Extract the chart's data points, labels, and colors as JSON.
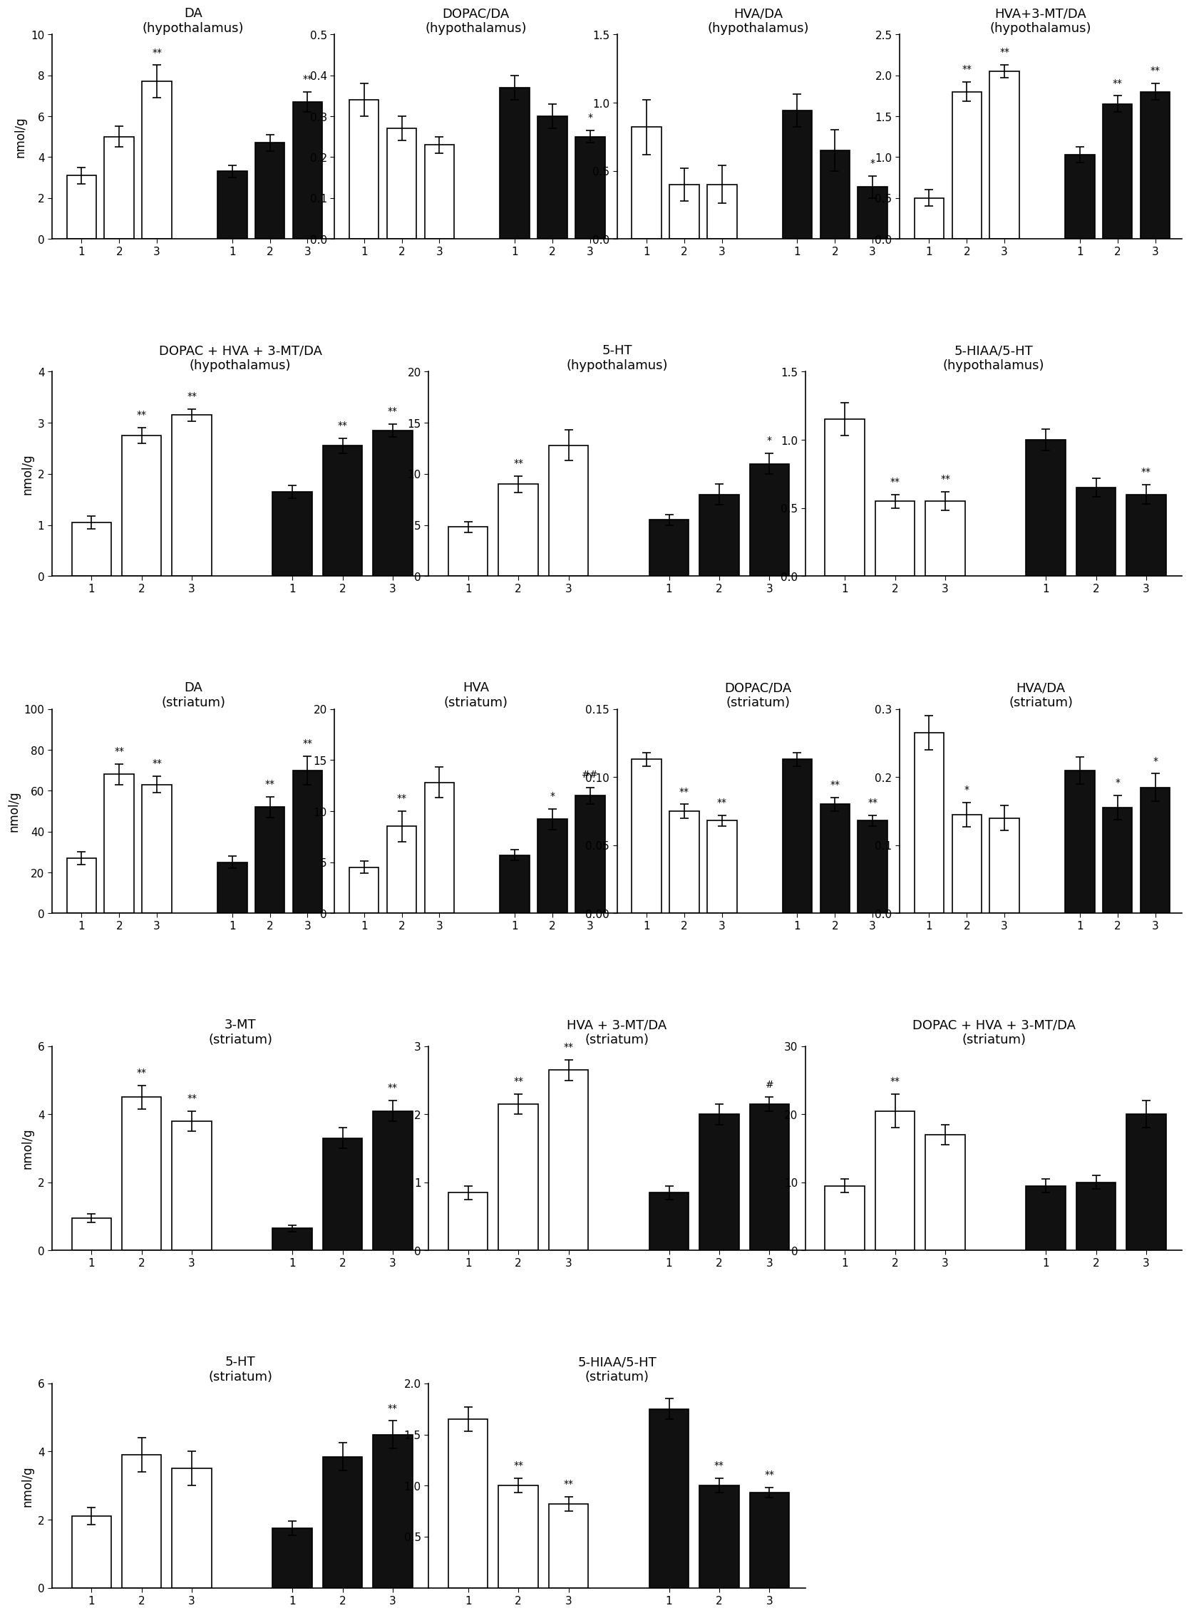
{
  "panels": [
    {
      "title": "DA",
      "subtitle": "(hypothalamus)",
      "ylabel": "nmol/g",
      "ylim": [
        0,
        10
      ],
      "yticks": [
        0,
        2,
        4,
        6,
        8,
        10
      ],
      "white_bars": [
        3.1,
        5.0,
        7.7
      ],
      "black_bars": [
        3.3,
        4.7,
        6.7
      ],
      "white_errors": [
        0.4,
        0.5,
        0.8
      ],
      "black_errors": [
        0.3,
        0.4,
        0.5
      ],
      "white_sig": [
        "",
        "",
        "**"
      ],
      "black_sig": [
        "",
        "",
        "**"
      ],
      "row": 0,
      "col": 0
    },
    {
      "title": "DOPAC/DA",
      "subtitle": "(hypothalamus)",
      "ylabel": "",
      "ylim": [
        0,
        0.5
      ],
      "yticks": [
        0,
        0.1,
        0.2,
        0.3,
        0.4,
        0.5
      ],
      "white_bars": [
        0.34,
        0.27,
        0.23
      ],
      "black_bars": [
        0.37,
        0.3,
        0.25
      ],
      "white_errors": [
        0.04,
        0.03,
        0.02
      ],
      "black_errors": [
        0.03,
        0.03,
        0.015
      ],
      "white_sig": [
        "",
        "",
        ""
      ],
      "black_sig": [
        "",
        "",
        "*"
      ],
      "row": 0,
      "col": 1
    },
    {
      "title": "HVA/DA",
      "subtitle": "(hypothalamus)",
      "ylabel": "",
      "ylim": [
        0,
        1.5
      ],
      "yticks": [
        0,
        0.5,
        1.0,
        1.5
      ],
      "white_bars": [
        0.82,
        0.4,
        0.4
      ],
      "black_bars": [
        0.94,
        0.65,
        0.38
      ],
      "white_errors": [
        0.2,
        0.12,
        0.14
      ],
      "black_errors": [
        0.12,
        0.15,
        0.08
      ],
      "white_sig": [
        "",
        "",
        ""
      ],
      "black_sig": [
        "",
        "",
        "*"
      ],
      "row": 0,
      "col": 2
    },
    {
      "title": "HVA+3-MT/DA",
      "subtitle": "(hypothalamus)",
      "ylabel": "",
      "ylim": [
        0,
        2.5
      ],
      "yticks": [
        0,
        0.5,
        1.0,
        1.5,
        2.0,
        2.5
      ],
      "white_bars": [
        0.5,
        1.8,
        2.05
      ],
      "black_bars": [
        1.03,
        1.65,
        1.8
      ],
      "white_errors": [
        0.1,
        0.12,
        0.08
      ],
      "black_errors": [
        0.1,
        0.1,
        0.1
      ],
      "white_sig": [
        "",
        "**",
        "**"
      ],
      "black_sig": [
        "",
        "**",
        "**"
      ],
      "row": 0,
      "col": 3
    },
    {
      "title": "DOPAC + HVA + 3-MT/DA",
      "subtitle": "(hypothalamus)",
      "ylabel": "nmol/g",
      "ylim": [
        0,
        4
      ],
      "yticks": [
        0,
        1,
        2,
        3,
        4
      ],
      "white_bars": [
        1.05,
        2.75,
        3.15
      ],
      "black_bars": [
        1.65,
        2.55,
        2.85
      ],
      "white_errors": [
        0.12,
        0.15,
        0.12
      ],
      "black_errors": [
        0.12,
        0.15,
        0.12
      ],
      "white_sig": [
        "",
        "**",
        "**"
      ],
      "black_sig": [
        "",
        "**",
        "**"
      ],
      "row": 1,
      "col": 0
    },
    {
      "title": "5-HT",
      "subtitle": "(hypothalamus)",
      "ylabel": "",
      "ylim": [
        0,
        20
      ],
      "yticks": [
        0,
        5,
        10,
        15,
        20
      ],
      "white_bars": [
        4.8,
        9.0,
        12.8
      ],
      "black_bars": [
        5.5,
        8.0,
        11.0
      ],
      "white_errors": [
        0.5,
        0.8,
        1.5
      ],
      "black_errors": [
        0.5,
        1.0,
        1.0
      ],
      "white_sig": [
        "",
        "**",
        ""
      ],
      "black_sig": [
        "",
        "",
        "*"
      ],
      "row": 1,
      "col": 1
    },
    {
      "title": "5-HIAA/5-HT",
      "subtitle": "(hypothalamus)",
      "ylabel": "",
      "ylim": [
        0,
        1.5
      ],
      "yticks": [
        0,
        0.5,
        1.0,
        1.5
      ],
      "white_bars": [
        1.15,
        0.55,
        0.55
      ],
      "black_bars": [
        1.0,
        0.65,
        0.6
      ],
      "white_errors": [
        0.12,
        0.05,
        0.07
      ],
      "black_errors": [
        0.08,
        0.07,
        0.07
      ],
      "white_sig": [
        "",
        "**",
        "**"
      ],
      "black_sig": [
        "",
        "",
        "**"
      ],
      "row": 1,
      "col": 2
    },
    {
      "title": "DA",
      "subtitle": "(striatum)",
      "ylabel": "nmol/g",
      "ylim": [
        0,
        100
      ],
      "yticks": [
        0,
        20,
        40,
        60,
        80,
        100
      ],
      "white_bars": [
        27,
        68,
        63
      ],
      "black_bars": [
        25,
        52,
        70
      ],
      "white_errors": [
        3,
        5,
        4
      ],
      "black_errors": [
        3,
        5,
        7
      ],
      "white_sig": [
        "",
        "**",
        "**"
      ],
      "black_sig": [
        "",
        "**",
        "**"
      ],
      "row": 2,
      "col": 0
    },
    {
      "title": "HVA",
      "subtitle": "(striatum)",
      "ylabel": "",
      "ylim": [
        0,
        20
      ],
      "yticks": [
        0,
        5,
        10,
        15,
        20
      ],
      "white_bars": [
        4.5,
        8.5,
        12.8
      ],
      "black_bars": [
        5.7,
        9.2,
        11.5
      ],
      "white_errors": [
        0.6,
        1.5,
        1.5
      ],
      "black_errors": [
        0.5,
        1.0,
        0.8
      ],
      "white_sig": [
        "",
        "**",
        ""
      ],
      "black_sig": [
        "",
        "*",
        "##"
      ],
      "row": 2,
      "col": 1
    },
    {
      "title": "DOPAC/DA",
      "subtitle": "(striatum)",
      "ylabel": "",
      "ylim": [
        0,
        0.15
      ],
      "yticks": [
        0,
        0.05,
        0.1,
        0.15
      ],
      "white_bars": [
        0.113,
        0.075,
        0.068
      ],
      "black_bars": [
        0.113,
        0.08,
        0.068
      ],
      "white_errors": [
        0.005,
        0.005,
        0.004
      ],
      "black_errors": [
        0.005,
        0.005,
        0.004
      ],
      "white_sig": [
        "",
        "**",
        "**"
      ],
      "black_sig": [
        "",
        "**",
        "**"
      ],
      "row": 2,
      "col": 2
    },
    {
      "title": "HVA/DA",
      "subtitle": "(striatum)",
      "ylabel": "",
      "ylim": [
        0,
        0.3
      ],
      "yticks": [
        0,
        0.1,
        0.2,
        0.3
      ],
      "white_bars": [
        0.265,
        0.145,
        0.14
      ],
      "black_bars": [
        0.21,
        0.155,
        0.185
      ],
      "white_errors": [
        0.025,
        0.018,
        0.018
      ],
      "black_errors": [
        0.02,
        0.018,
        0.02
      ],
      "white_sig": [
        "",
        "*",
        ""
      ],
      "black_sig": [
        "",
        "*",
        "*"
      ],
      "row": 2,
      "col": 3
    },
    {
      "title": "3-MT",
      "subtitle": "(striatum)",
      "ylabel": "nmol/g",
      "ylim": [
        0,
        6
      ],
      "yticks": [
        0,
        2,
        4,
        6
      ],
      "white_bars": [
        0.95,
        4.5,
        3.8
      ],
      "black_bars": [
        0.65,
        3.3,
        4.1
      ],
      "white_errors": [
        0.12,
        0.35,
        0.3
      ],
      "black_errors": [
        0.1,
        0.3,
        0.3
      ],
      "white_sig": [
        "",
        "**",
        "**"
      ],
      "black_sig": [
        "",
        "",
        "**"
      ],
      "row": 3,
      "col": 0
    },
    {
      "title": "HVA + 3-MT/DA",
      "subtitle": "(striatum)",
      "ylabel": "",
      "ylim": [
        0,
        3
      ],
      "yticks": [
        0,
        1,
        2,
        3
      ],
      "white_bars": [
        0.85,
        2.15,
        2.65
      ],
      "black_bars": [
        0.85,
        2.0,
        2.15
      ],
      "white_errors": [
        0.1,
        0.15,
        0.15
      ],
      "black_errors": [
        0.1,
        0.15,
        0.1
      ],
      "white_sig": [
        "",
        "**",
        "**"
      ],
      "black_sig": [
        "",
        "",
        "#"
      ],
      "row": 3,
      "col": 1
    },
    {
      "title": "DOPAC + HVA + 3-MT/DA",
      "subtitle": "(striatum)",
      "ylabel": "",
      "ylim": [
        0,
        30
      ],
      "yticks": [
        0,
        10,
        20,
        30
      ],
      "white_bars": [
        9.5,
        20.5,
        17.0
      ],
      "black_bars": [
        9.5,
        10.0,
        20.0
      ],
      "white_errors": [
        1.0,
        2.5,
        1.5
      ],
      "black_errors": [
        1.0,
        1.0,
        2.0
      ],
      "white_sig": [
        "",
        "**",
        ""
      ],
      "black_sig": [
        "",
        "",
        ""
      ],
      "row": 3,
      "col": 2
    },
    {
      "title": "5-HT",
      "subtitle": "(striatum)",
      "ylabel": "nmol/g",
      "ylim": [
        0,
        6
      ],
      "yticks": [
        0,
        2,
        4,
        6
      ],
      "white_bars": [
        2.1,
        3.9,
        3.5
      ],
      "black_bars": [
        1.75,
        3.85,
        4.5
      ],
      "white_errors": [
        0.25,
        0.5,
        0.5
      ],
      "black_errors": [
        0.2,
        0.4,
        0.4
      ],
      "white_sig": [
        "",
        "",
        ""
      ],
      "black_sig": [
        "",
        "",
        "**"
      ],
      "row": 4,
      "col": 0
    },
    {
      "title": "5-HIAA/5-HT",
      "subtitle": "(striatum)",
      "ylabel": "",
      "ylim": [
        0,
        2.0
      ],
      "yticks": [
        0.5,
        1.0,
        1.5,
        2.0
      ],
      "white_bars": [
        1.65,
        1.0,
        0.82
      ],
      "black_bars": [
        1.75,
        1.0,
        0.93
      ],
      "white_errors": [
        0.12,
        0.07,
        0.07
      ],
      "black_errors": [
        0.1,
        0.07,
        0.05
      ],
      "white_sig": [
        "",
        "**",
        "**"
      ],
      "black_sig": [
        "",
        "**",
        "**"
      ],
      "row": 4,
      "col": 1
    }
  ],
  "layout": {
    "row_ncols": [
      4,
      3,
      4,
      3,
      2
    ],
    "row0_cols": [
      0,
      1,
      2,
      3
    ],
    "row1_cols": [
      0,
      1,
      2
    ],
    "row2_cols": [
      0,
      1,
      2,
      3
    ],
    "row3_cols": [
      0,
      1,
      2
    ],
    "row4_cols": [
      0,
      1
    ]
  },
  "white_color": "#ffffff",
  "black_color": "#111111",
  "bar_width": 0.55,
  "bar_edge_color": "#000000",
  "sig_fontsize": 10,
  "title_fontsize": 13,
  "label_fontsize": 12,
  "tick_fontsize": 11
}
